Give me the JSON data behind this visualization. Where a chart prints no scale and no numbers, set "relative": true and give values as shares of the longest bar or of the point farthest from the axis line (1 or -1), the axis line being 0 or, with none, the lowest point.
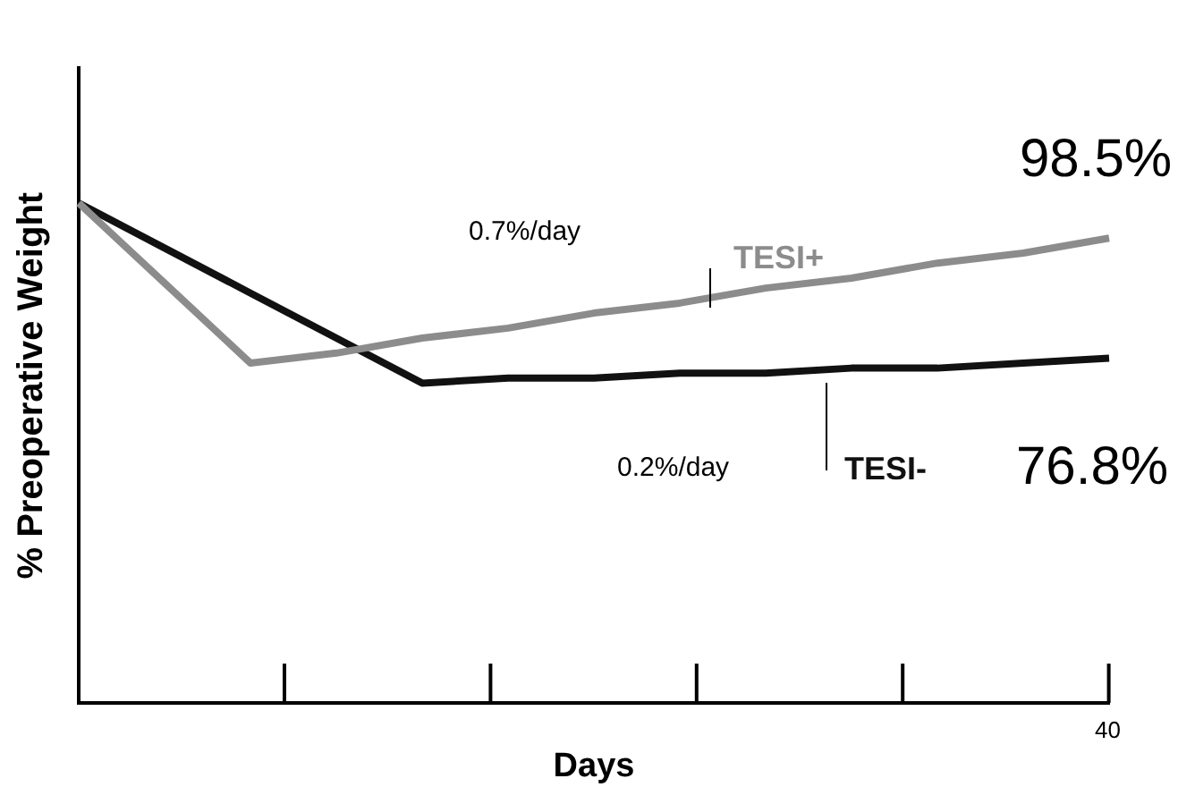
{
  "chart_data": {
    "type": "line",
    "relative": true,
    "ylabel": "% Preoperative Weight",
    "xlabel": "Days",
    "categories": [
      null,
      null,
      null,
      null,
      null,
      null,
      null,
      null,
      null,
      null,
      null,
      null,
      null
    ],
    "series": [
      {
        "name": "TESI+",
        "color": "#8c8c8c",
        "values": [
          1,
          0.84,
          0.68,
          0.7,
          0.73,
          0.75,
          0.78,
          0.8,
          0.83,
          0.85,
          0.88,
          0.9,
          0.93
        ]
      },
      {
        "name": "TESI-",
        "color": "#111111",
        "values": [
          1,
          0.91,
          0.82,
          0.73,
          0.64,
          0.65,
          0.65,
          0.66,
          0.66,
          0.67,
          0.67,
          0.68,
          0.69
        ]
      }
    ],
    "annotations": [
      "0.7%/day",
      "0.2%/day",
      "98.5%",
      "76.8%",
      "40"
    ],
    "legend": false,
    "marker": "none",
    "grid": false
  }
}
